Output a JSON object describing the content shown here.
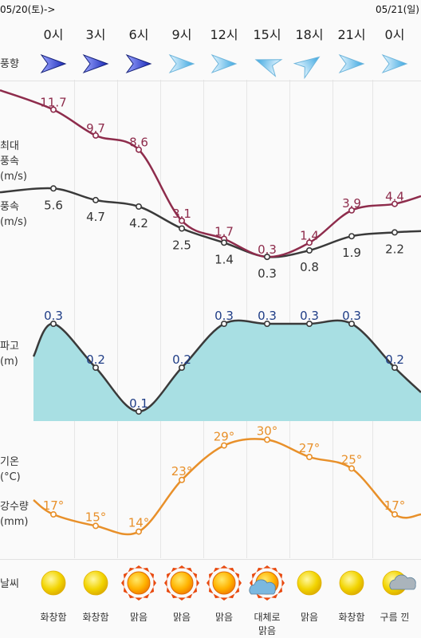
{
  "dates": {
    "left": "05/20(토)->",
    "right": "05/21(일)"
  },
  "hours": [
    "0시",
    "3시",
    "6시",
    "9시",
    "12시",
    "15시",
    "18시",
    "21시",
    "0시"
  ],
  "labels": {
    "wind_dir": "풍향",
    "max_wind": "최대\n풍속\n(m/s)",
    "wind": "풍속\n(m/s)",
    "wave": "파고\n(m)",
    "temp": "기온\n(°C)",
    "rain": "강수량\n(mm)",
    "weather": "날씨"
  },
  "wind_directions": [
    "navy",
    "navy",
    "navy",
    "light",
    "light",
    "light-nw",
    "light-ne",
    "light",
    "light"
  ],
  "chart_data": {
    "type": "line",
    "categories": [
      "0시",
      "3시",
      "6시",
      "9시",
      "12시",
      "15시",
      "18시",
      "21시",
      "0시"
    ],
    "max_wind": [
      11.7,
      9.7,
      8.6,
      3.1,
      1.7,
      0.3,
      1.4,
      3.9,
      4.4
    ],
    "wind": [
      5.6,
      4.7,
      4.2,
      2.5,
      1.4,
      0.3,
      0.8,
      1.9,
      2.2
    ],
    "wave": [
      0.3,
      0.2,
      0.1,
      0.2,
      0.3,
      0.3,
      0.3,
      0.3,
      0.2
    ],
    "temp": [
      17,
      15,
      14,
      23,
      29,
      30,
      27,
      25,
      17
    ],
    "max_wind_labels": [
      "11.7",
      "9.7",
      "8.6",
      "3.1",
      "1.7",
      "0.3",
      "1.4",
      "3.9",
      "4.4"
    ],
    "wind_labels": [
      "5.6",
      "4.7",
      "4.2",
      "2.5",
      "1.4",
      "0.3",
      "0.8",
      "1.9",
      "2.2"
    ],
    "wave_labels": [
      "0.3",
      "0.2",
      "0.1",
      "0.2",
      "0.3",
      "0.3",
      "0.3",
      "0.3",
      "0.2"
    ],
    "temp_labels": [
      "17°",
      "15°",
      "14°",
      "23°",
      "29°",
      "30°",
      "27°",
      "25°",
      "17°"
    ],
    "colors": {
      "max_wind": "#8e2c4c",
      "wind": "#3a3a3a",
      "wave_fill": "#a8dfe3",
      "wave_label": "#1f3d86",
      "temp": "#e8902a"
    }
  },
  "weather": [
    {
      "icon": "sun-icon",
      "label": "화창함"
    },
    {
      "icon": "sun-icon",
      "label": "화창함"
    },
    {
      "icon": "hot-sun-icon",
      "label": "맑음"
    },
    {
      "icon": "hot-sun-icon",
      "label": "맑음"
    },
    {
      "icon": "hot-sun-icon",
      "label": "맑음"
    },
    {
      "icon": "sun-cloud-icon",
      "label": "대체로\n맑음"
    },
    {
      "icon": "sun-icon",
      "label": "맑음"
    },
    {
      "icon": "sun-icon",
      "label": "화창함"
    },
    {
      "icon": "sun-cloud-icon",
      "label": "구름 낀"
    }
  ]
}
